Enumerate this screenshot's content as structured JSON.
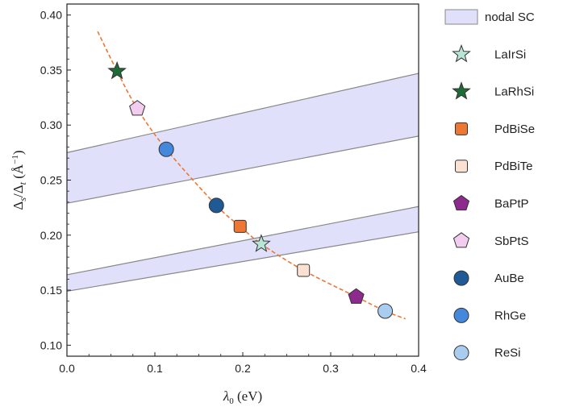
{
  "chart_data": {
    "type": "scatter",
    "xlabel": "λ₀ (eV)",
    "ylabel": "Δs/Δt (Å⁻¹)",
    "xlim": [
      0.0,
      0.4
    ],
    "ylim": [
      0.09,
      0.41
    ],
    "xticks": [
      "0.0",
      "0.1",
      "0.2",
      "0.3",
      "0.4"
    ],
    "yticks": [
      "0.10",
      "0.15",
      "0.20",
      "0.25",
      "0.30",
      "0.35",
      "0.40"
    ],
    "grid": false,
    "legend_position": "right-outside",
    "bands": [
      {
        "name": "nodal SC",
        "x": [
          0.0,
          0.4
        ],
        "lower": [
          0.229,
          0.29
        ],
        "upper": [
          0.275,
          0.347
        ],
        "color": "#e0e0fa",
        "edge": "#888888"
      },
      {
        "name": "nodal SC",
        "x": [
          0.0,
          0.4
        ],
        "lower": [
          0.149,
          0.203
        ],
        "upper": [
          0.164,
          0.226
        ],
        "color": "#e0e0fa",
        "edge": "#888888"
      }
    ],
    "fit_curve": {
      "style": "dashed",
      "color": "#ee7733",
      "x": [
        0.035,
        0.057,
        0.08,
        0.113,
        0.17,
        0.197,
        0.221,
        0.269,
        0.329,
        0.362,
        0.385
      ],
      "y": [
        0.385,
        0.349,
        0.315,
        0.278,
        0.227,
        0.208,
        0.192,
        0.168,
        0.144,
        0.131,
        0.124
      ]
    },
    "series": [
      {
        "name": "LaIrSi",
        "x": 0.221,
        "y": 0.192,
        "marker": "star",
        "color": "#b8e6d4"
      },
      {
        "name": "LaRhSi",
        "x": 0.057,
        "y": 0.349,
        "marker": "star",
        "color": "#1d6b35"
      },
      {
        "name": "PdBiSe",
        "x": 0.197,
        "y": 0.208,
        "marker": "square",
        "color": "#ee7733"
      },
      {
        "name": "PdBiTe",
        "x": 0.269,
        "y": 0.168,
        "marker": "square",
        "color": "#fbe1d2"
      },
      {
        "name": "BaPtP",
        "x": 0.329,
        "y": 0.144,
        "marker": "pentagon",
        "color": "#8e2a8e"
      },
      {
        "name": "SbPtS",
        "x": 0.08,
        "y": 0.315,
        "marker": "pentagon",
        "color": "#f2cdef"
      },
      {
        "name": "AuBe",
        "x": 0.17,
        "y": 0.227,
        "marker": "circle",
        "color": "#1f5a96"
      },
      {
        "name": "RhGe",
        "x": 0.113,
        "y": 0.278,
        "marker": "circle",
        "color": "#4488dd"
      },
      {
        "name": "ReSi",
        "x": 0.362,
        "y": 0.131,
        "marker": "circle",
        "color": "#a9cdef"
      }
    ],
    "legend": [
      {
        "label": "nodal SC",
        "marker": "band",
        "color": "#e0e0fa"
      },
      {
        "label": "LaIrSi",
        "marker": "star",
        "color": "#b8e6d4"
      },
      {
        "label": "LaRhSi",
        "marker": "star",
        "color": "#1d6b35"
      },
      {
        "label": "PdBiSe",
        "marker": "square",
        "color": "#ee7733"
      },
      {
        "label": "PdBiTe",
        "marker": "square",
        "color": "#fbe1d2"
      },
      {
        "label": "BaPtP",
        "marker": "pentagon",
        "color": "#8e2a8e"
      },
      {
        "label": "SbPtS",
        "marker": "pentagon",
        "color": "#f2cdef"
      },
      {
        "label": "AuBe",
        "marker": "circle",
        "color": "#1f5a96"
      },
      {
        "label": "RhGe",
        "marker": "circle",
        "color": "#4488dd"
      },
      {
        "label": "ReSi",
        "marker": "circle",
        "color": "#a9cdef"
      }
    ]
  }
}
